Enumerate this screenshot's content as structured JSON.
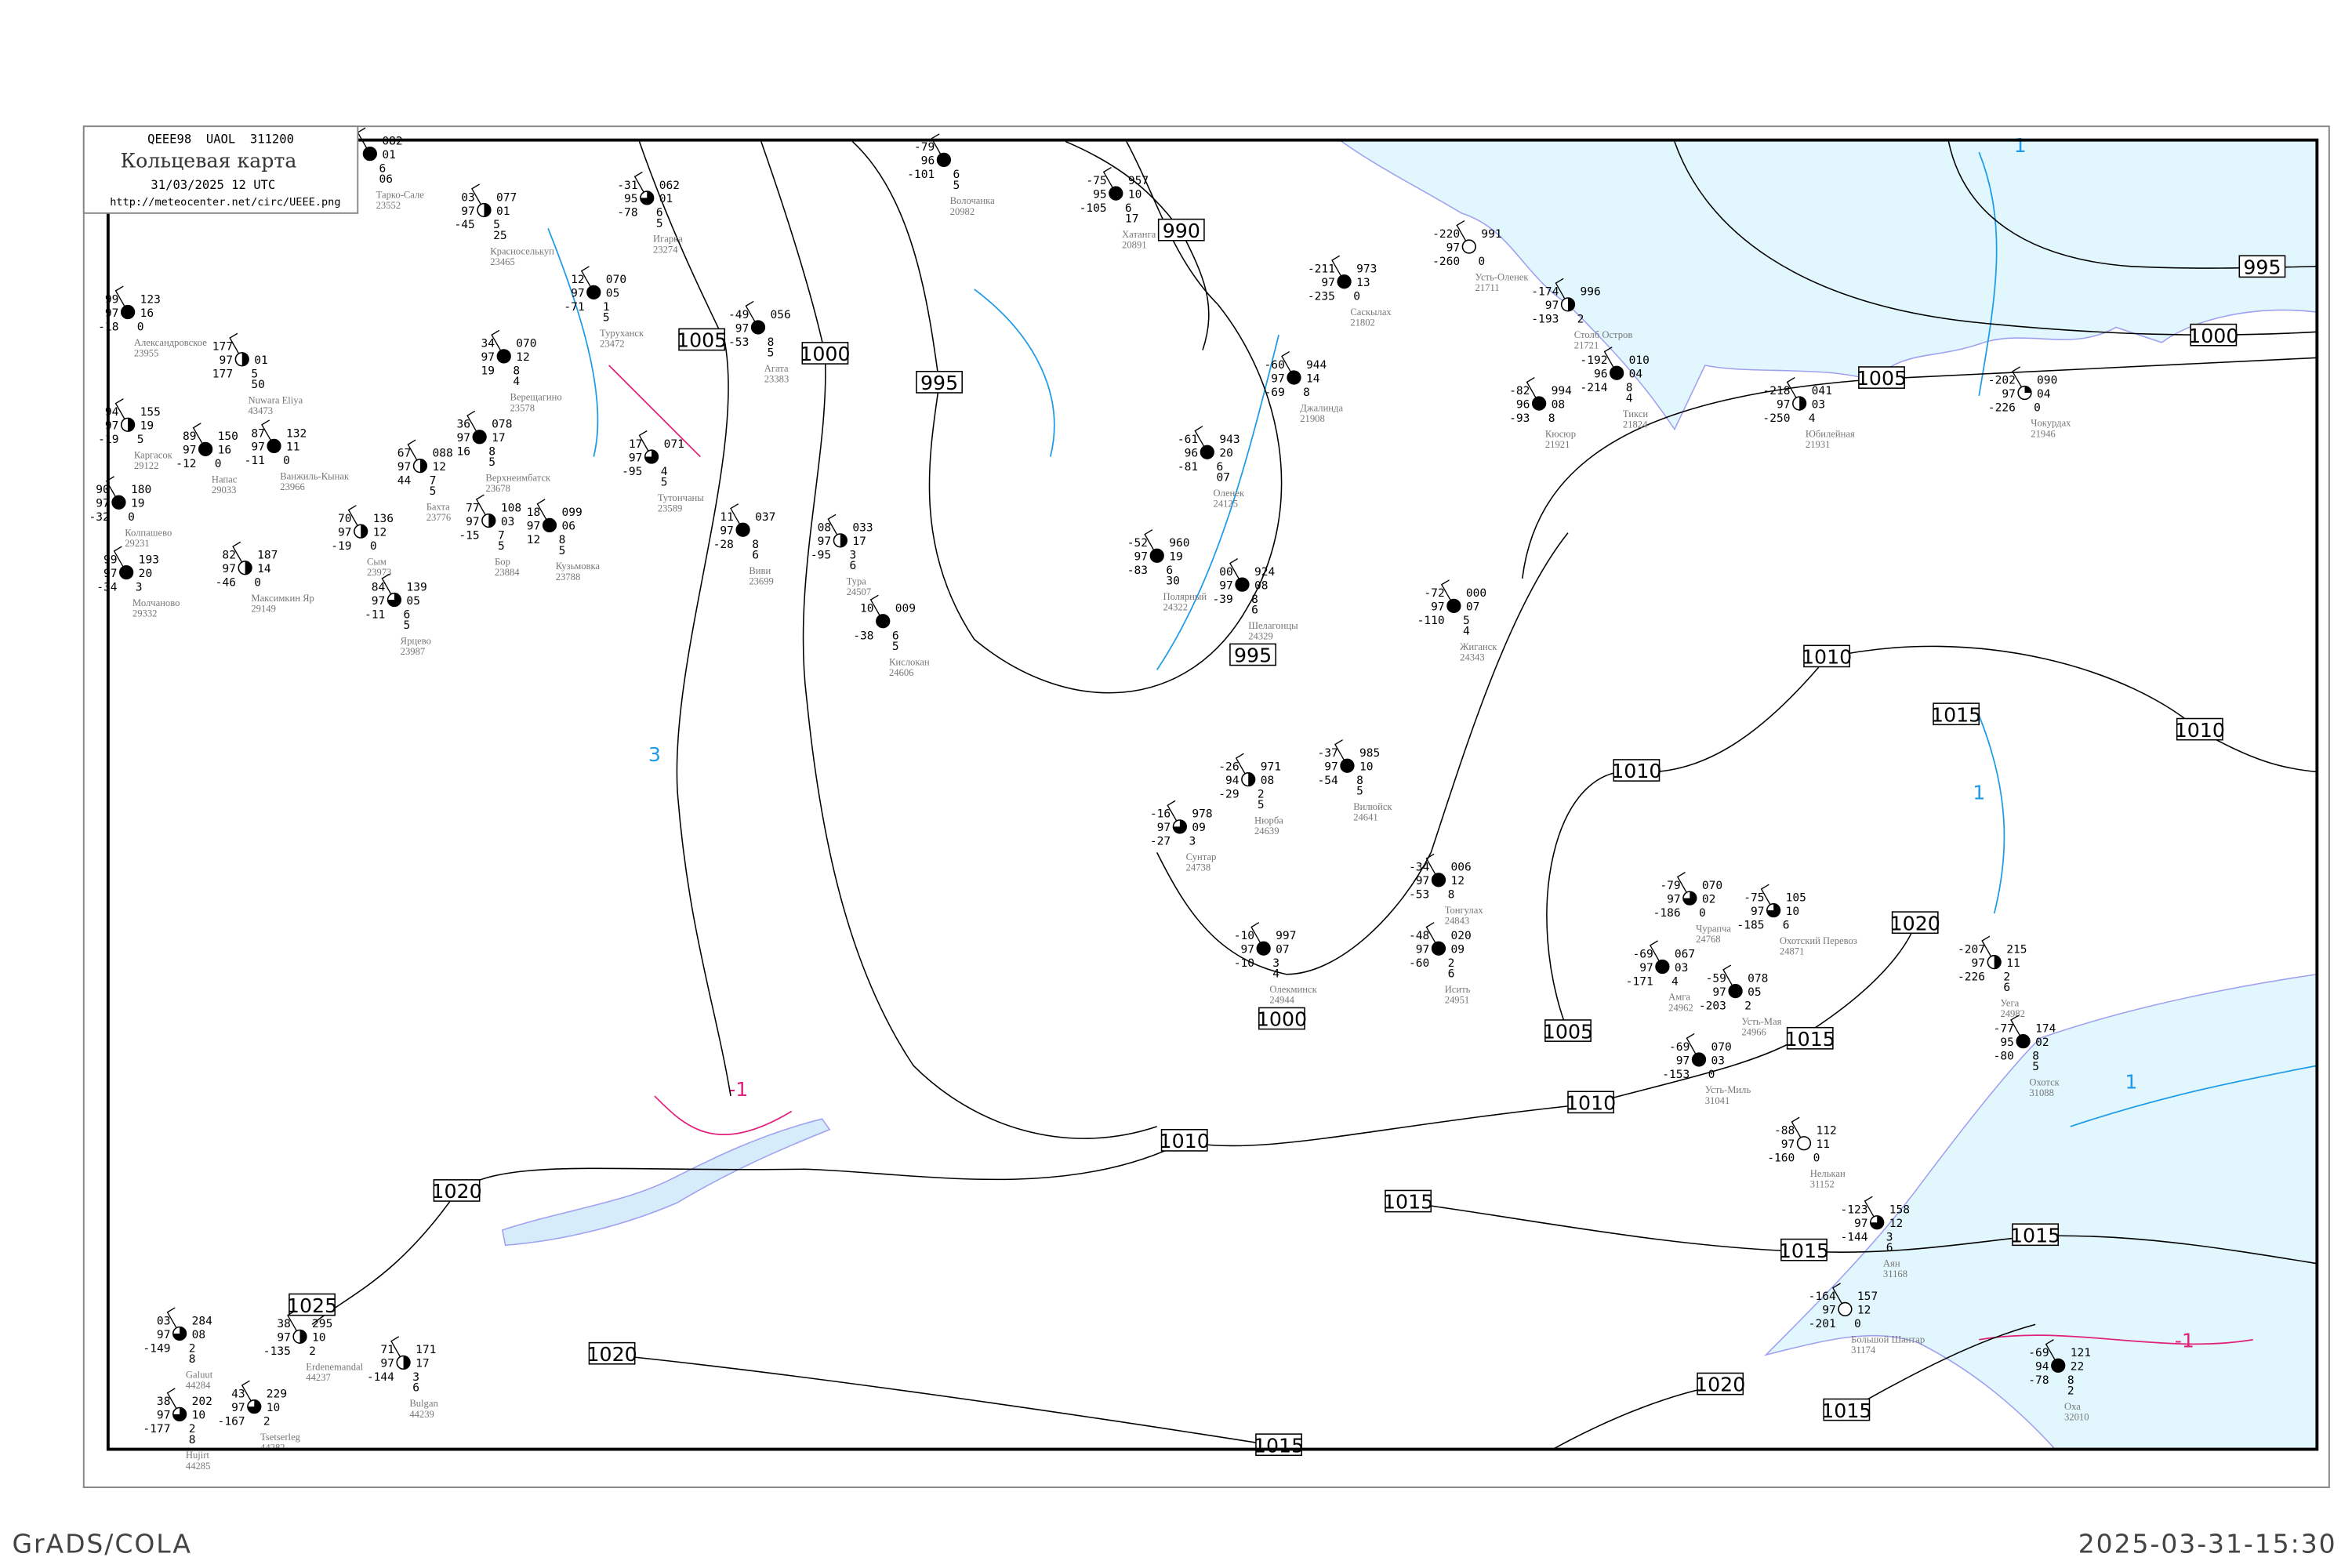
{
  "header": {
    "code_line": "QEEE98  UAOL  311200",
    "title": "Кольцевая карта",
    "datetime": "31/03/2025 12 UTC",
    "url": "http://meteocenter.net/circ/UEEE.png"
  },
  "footer": {
    "left": "GrADS/COLA",
    "right": "2025-03-31-15:30"
  },
  "colors": {
    "sea": "#e2f7fd",
    "coast": "#a0a0f0",
    "isobar": "#000000",
    "isotherm_neg": "#1e9be8",
    "isotherm_pos": "#e0207a",
    "station_name": "#777777",
    "marker_blue": "#3399ee",
    "marker_green": "#22cc33",
    "marker_yellow": "#ffff99"
  },
  "isobar_labels": [
    "1005",
    "1000",
    "995",
    "990",
    "995",
    "1000",
    "1005",
    "995",
    "1000",
    "1005",
    "1010",
    "1010",
    "1010",
    "1010",
    "1015",
    "1015",
    "1015",
    "1015",
    "1020",
    "1020",
    "1020",
    "1025",
    "1015",
    "1015",
    "1015",
    "1020",
    "1010"
  ],
  "isotherm_labels": [
    "1",
    "1",
    "3",
    "-1",
    "-1",
    "1"
  ],
  "stations": [
    {
      "name": "Тарко-Сале",
      "id": "23552",
      "temp": "",
      "vis": "",
      "dew": "",
      "pressure": "082",
      "tendency": "01",
      "extra": [
        "6",
        "06"
      ],
      "cover": "full"
    },
    {
      "name": "Александровское",
      "id": "23955",
      "temp": "99",
      "vis": "97",
      "dew": "-18",
      "pressure": "123",
      "tendency": "16",
      "extra": [
        "0"
      ],
      "cover": "full"
    },
    {
      "name": "Nuwara Eliya",
      "id": "43473",
      "temp": "177",
      "vis": "97",
      "dew": "177",
      "pressure": "",
      "tendency": "01",
      "extra": [
        "5",
        "50"
      ],
      "cover": "half"
    },
    {
      "name": "Каргасок",
      "id": "29122",
      "temp": "94",
      "vis": "97",
      "dew": "-19",
      "pressure": "155",
      "tendency": "19",
      "extra": [
        "5"
      ],
      "cover": "half"
    },
    {
      "name": "Напас",
      "id": "29033",
      "temp": "89",
      "vis": "97",
      "dew": "-12",
      "pressure": "150",
      "tendency": "16",
      "extra": [
        "0"
      ],
      "cover": "full"
    },
    {
      "name": "Ванжиль-Кынак",
      "id": "23966",
      "temp": "87",
      "vis": "97",
      "dew": "-11",
      "pressure": "132",
      "tendency": "11",
      "extra": [
        "0"
      ],
      "cover": "full"
    },
    {
      "name": "Колпашево",
      "id": "29231",
      "temp": "90",
      "vis": "97",
      "dew": "-32",
      "pressure": "180",
      "tendency": "19",
      "extra": [
        "0"
      ],
      "cover": "full"
    },
    {
      "name": "Молчаново",
      "id": "29332",
      "temp": "99",
      "vis": "97",
      "dew": "-34",
      "pressure": "193",
      "tendency": "20",
      "extra": [
        "3"
      ],
      "cover": "full"
    },
    {
      "name": "Максимкин Яр",
      "id": "29149",
      "temp": "82",
      "vis": "97",
      "dew": "-46",
      "pressure": "187",
      "tendency": "14",
      "extra": [
        "0"
      ],
      "cover": "half"
    },
    {
      "name": "Сым",
      "id": "23973",
      "temp": "70",
      "vis": "97",
      "dew": "-19",
      "pressure": "136",
      "tendency": "12",
      "extra": [
        "0"
      ],
      "cover": "half"
    },
    {
      "name": "Ярцево",
      "id": "23987",
      "temp": "84",
      "vis": "97",
      "dew": "-11",
      "pressure": "139",
      "tendency": "05",
      "extra": [
        "6",
        "5"
      ],
      "cover": "three-quarter"
    },
    {
      "name": "Красноселькуп",
      "id": "23465",
      "temp": "03",
      "vis": "97",
      "dew": "-45",
      "pressure": "077",
      "tendency": "01",
      "extra": [
        "5",
        "25"
      ],
      "cover": "half"
    },
    {
      "name": "Игарка",
      "id": "23274",
      "temp": "-31",
      "vis": "95",
      "dew": "-78",
      "pressure": "062",
      "tendency": "01",
      "extra": [
        "6",
        "5"
      ],
      "cover": "three-quarter"
    },
    {
      "name": "Туруханск",
      "id": "23472",
      "temp": "12",
      "vis": "97",
      "dew": "-71",
      "pressure": "070",
      "tendency": "05",
      "extra": [
        "1",
        "5"
      ],
      "cover": "full"
    },
    {
      "name": "Верещагино",
      "id": "23578",
      "temp": "34",
      "vis": "97",
      "dew": "19",
      "pressure": "070",
      "tendency": "12",
      "extra": [
        "8",
        "4"
      ],
      "cover": "full"
    },
    {
      "name": "Верхнеимбатск",
      "id": "23678",
      "temp": "36",
      "vis": "97",
      "dew": "16",
      "pressure": "078",
      "tendency": "17",
      "extra": [
        "8",
        "5"
      ],
      "cover": "full"
    },
    {
      "name": "Бахта",
      "id": "23776",
      "temp": "67",
      "vis": "97",
      "dew": "44",
      "pressure": "088",
      "tendency": "12",
      "extra": [
        "7",
        "5"
      ],
      "cover": "half"
    },
    {
      "name": "Бор",
      "id": "23884",
      "temp": "77",
      "vis": "97",
      "dew": "-15",
      "pressure": "108",
      "tendency": "03",
      "extra": [
        "7",
        "5"
      ],
      "cover": "half"
    },
    {
      "name": "Кузьмовка",
      "id": "23788",
      "temp": "18",
      "vis": "97",
      "dew": "12",
      "pressure": "099",
      "tendency": "06",
      "extra": [
        "8",
        "5"
      ],
      "cover": "full"
    },
    {
      "name": "Тутончаны",
      "id": "23589",
      "temp": "17",
      "vis": "97",
      "dew": "-95",
      "pressure": "071",
      "tendency": "",
      "extra": [
        "4",
        "5"
      ],
      "cover": "three-quarter"
    },
    {
      "name": "Волочанка",
      "id": "20982",
      "temp": "-79",
      "vis": "96",
      "dew": "-101",
      "pressure": "",
      "tendency": "",
      "extra": [
        "6",
        "5"
      ],
      "cover": "full"
    },
    {
      "name": "Хатанга",
      "id": "20891",
      "temp": "-75",
      "vis": "95",
      "dew": "-105",
      "pressure": "957",
      "tendency": "10",
      "extra": [
        "6",
        "17"
      ],
      "cover": "full"
    },
    {
      "name": "Агата",
      "id": "23383",
      "temp": "-49",
      "vis": "97",
      "dew": "-53",
      "pressure": "056",
      "tendency": "",
      "extra": [
        "8",
        "5"
      ],
      "cover": "full"
    },
    {
      "name": "Виви",
      "id": "23699",
      "temp": "11",
      "vis": "97",
      "dew": "-28",
      "pressure": "037",
      "tendency": "",
      "extra": [
        "8",
        "6"
      ],
      "cover": "full"
    },
    {
      "name": "Тура",
      "id": "24507",
      "temp": "08",
      "vis": "97",
      "dew": "-95",
      "pressure": "033",
      "tendency": "17",
      "extra": [
        "3",
        "6"
      ],
      "cover": "half"
    },
    {
      "name": "Кислокан",
      "id": "24606",
      "temp": "10",
      "vis": "",
      "dew": "-38",
      "pressure": "009",
      "tendency": "",
      "extra": [
        "6",
        "5"
      ],
      "cover": "full"
    },
    {
      "name": "Саскылах",
      "id": "21802",
      "temp": "-211",
      "vis": "97",
      "dew": "-235",
      "pressure": "973",
      "tendency": "13",
      "extra": [
        "0"
      ],
      "cover": "full"
    },
    {
      "name": "Усть-Оленек",
      "id": "21711",
      "temp": "-220",
      "vis": "97",
      "dew": "-260",
      "pressure": "991",
      "tendency": "",
      "extra": [
        "0"
      ],
      "cover": "empty"
    },
    {
      "name": "Джалинда",
      "id": "21908",
      "temp": "-60",
      "vis": "97",
      "dew": "-69",
      "pressure": "944",
      "tendency": "14",
      "extra": [
        "8"
      ],
      "cover": "full"
    },
    {
      "name": "Оленек",
      "id": "24125",
      "temp": "-61",
      "vis": "96",
      "dew": "-81",
      "pressure": "943",
      "tendency": "20",
      "extra": [
        "6",
        "07"
      ],
      "cover": "full"
    },
    {
      "name": "Полярный",
      "id": "24322",
      "temp": "-52",
      "vis": "97",
      "dew": "-83",
      "pressure": "960",
      "tendency": "19",
      "extra": [
        "6",
        "30"
      ],
      "cover": "full"
    },
    {
      "name": "Шелагонцы",
      "id": "24329",
      "temp": "00",
      "vis": "97",
      "dew": "-39",
      "pressure": "924",
      "tendency": "08",
      "extra": [
        "8",
        "6"
      ],
      "cover": "full"
    },
    {
      "name": "Жиганск",
      "id": "24343",
      "temp": "-72",
      "vis": "97",
      "dew": "-110",
      "pressure": "000",
      "tendency": "07",
      "extra": [
        "5",
        "4"
      ],
      "cover": "full"
    },
    {
      "name": "Столб Остров",
      "id": "21721",
      "temp": "-174",
      "vis": "97",
      "dew": "-193",
      "pressure": "996",
      "tendency": "",
      "extra": [
        "2"
      ],
      "cover": "half"
    },
    {
      "name": "Тикси",
      "id": "21824",
      "temp": "-192",
      "vis": "96",
      "dew": "-214",
      "pressure": "010",
      "tendency": "04",
      "extra": [
        "8",
        "4"
      ],
      "cover": "full"
    },
    {
      "name": "Кюсюр",
      "id": "21921",
      "temp": "-82",
      "vis": "96",
      "dew": "-93",
      "pressure": "994",
      "tendency": "08",
      "extra": [
        "8"
      ],
      "cover": "full"
    },
    {
      "name": "Юбилейная",
      "id": "21931",
      "temp": "-218",
      "vis": "97",
      "dew": "-250",
      "pressure": "041",
      "tendency": "03",
      "extra": [
        "4"
      ],
      "cover": "half"
    },
    {
      "name": "Чокурдах",
      "id": "21946",
      "temp": "-202",
      "vis": "97",
      "dew": "-226",
      "pressure": "090",
      "tendency": "04",
      "extra": [
        "0"
      ],
      "cover": "quarter"
    },
    {
      "name": "Нюрба",
      "id": "24639",
      "temp": "-26",
      "vis": "94",
      "dew": "-29",
      "pressure": "971",
      "tendency": "08",
      "extra": [
        "2",
        "5"
      ],
      "cover": "half"
    },
    {
      "name": "Вилюйск",
      "id": "24641",
      "temp": "-37",
      "vis": "97",
      "dew": "-54",
      "pressure": "985",
      "tendency": "10",
      "extra": [
        "8",
        "5"
      ],
      "cover": "full"
    },
    {
      "name": "Сунтар",
      "id": "24738",
      "temp": "-16",
      "vis": "97",
      "dew": "-27",
      "pressure": "978",
      "tendency": "09",
      "extra": [
        "3"
      ],
      "cover": "three-quarter"
    },
    {
      "name": "Тонгулах",
      "id": "24843",
      "temp": "-34",
      "vis": "97",
      "dew": "-53",
      "pressure": "006",
      "tendency": "12",
      "extra": [
        "8"
      ],
      "cover": "full"
    },
    {
      "name": "Олекминск",
      "id": "24944",
      "temp": "-10",
      "vis": "97",
      "dew": "-10",
      "pressure": "997",
      "tendency": "07",
      "extra": [
        "3",
        "4"
      ],
      "cover": "full"
    },
    {
      "name": "Исить",
      "id": "24951",
      "temp": "-48",
      "vis": "97",
      "dew": "-60",
      "pressure": "020",
      "tendency": "09",
      "extra": [
        "2",
        "6"
      ],
      "cover": "full"
    },
    {
      "name": "Чурапча",
      "id": "24768",
      "temp": "-79",
      "vis": "97",
      "dew": "-186",
      "pressure": "070",
      "tendency": "02",
      "extra": [
        "0"
      ],
      "cover": "three-quarter"
    },
    {
      "name": "Охотский Перевоз",
      "id": "24871",
      "temp": "-75",
      "vis": "97",
      "dew": "-185",
      "pressure": "105",
      "tendency": "10",
      "extra": [
        "6"
      ],
      "cover": "three-quarter"
    },
    {
      "name": "Амга",
      "id": "24962",
      "temp": "-69",
      "vis": "97",
      "dew": "-171",
      "pressure": "067",
      "tendency": "03",
      "extra": [
        "4"
      ],
      "cover": "full"
    },
    {
      "name": "Усть-Мая",
      "id": "24966",
      "temp": "-59",
      "vis": "97",
      "dew": "-203",
      "pressure": "078",
      "tendency": "05",
      "extra": [
        "2"
      ],
      "cover": "full"
    },
    {
      "name": "Усть-Миль",
      "id": "31041",
      "temp": "-69",
      "vis": "97",
      "dew": "-153",
      "pressure": "070",
      "tendency": "03",
      "extra": [
        "0"
      ],
      "cover": "full"
    },
    {
      "name": "Уега",
      "id": "24982",
      "temp": "-207",
      "vis": "97",
      "dew": "-226",
      "pressure": "215",
      "tendency": "11",
      "extra": [
        "2",
        "6"
      ],
      "cover": "half"
    },
    {
      "name": "Охотск",
      "id": "31088",
      "temp": "-77",
      "vis": "95",
      "dew": "-80",
      "pressure": "174",
      "tendency": "02",
      "extra": [
        "8",
        "5"
      ],
      "cover": "full"
    },
    {
      "name": "Нелькан",
      "id": "31152",
      "temp": "-88",
      "vis": "97",
      "dew": "-160",
      "pressure": "112",
      "tendency": "11",
      "extra": [
        "0"
      ],
      "cover": "empty"
    },
    {
      "name": "Аян",
      "id": "31168",
      "temp": "-123",
      "vis": "97",
      "dew": "-144",
      "pressure": "158",
      "tendency": "12",
      "extra": [
        "3",
        "6"
      ],
      "cover": "three-quarter"
    },
    {
      "name": "Большой Шантар",
      "id": "31174",
      "temp": "-164",
      "vis": "97",
      "dew": "-201",
      "pressure": "157",
      "tendency": "12",
      "extra": [
        "0"
      ],
      "cover": "empty"
    },
    {
      "name": "Оха",
      "id": "32010",
      "temp": "-69",
      "vis": "94",
      "dew": "-78",
      "pressure": "121",
      "tendency": "22",
      "extra": [
        "8",
        "2"
      ],
      "cover": "full"
    },
    {
      "name": "Erdenemandal",
      "id": "44237",
      "temp": "38",
      "vis": "97",
      "dew": "-135",
      "pressure": "295",
      "tendency": "10",
      "extra": [
        "2"
      ],
      "cover": "half"
    },
    {
      "name": "Bulgan",
      "id": "44239",
      "temp": "71",
      "vis": "97",
      "dew": "-144",
      "pressure": "171",
      "tendency": "17",
      "extra": [
        "3",
        "6"
      ],
      "cover": "half"
    },
    {
      "name": "Tsetserleg",
      "id": "44282",
      "temp": "43",
      "vis": "97",
      "dew": "-167",
      "pressure": "229",
      "tendency": "10",
      "extra": [
        "2"
      ],
      "cover": "three-quarter"
    },
    {
      "name": "Hujirt",
      "id": "44285",
      "temp": "38",
      "vis": "97",
      "dew": "-177",
      "pressure": "202",
      "tendency": "10",
      "extra": [
        "2",
        "8"
      ],
      "cover": "three-quarter"
    },
    {
      "name": "Galuut",
      "id": "44284",
      "temp": "03",
      "vis": "97",
      "dew": "-149",
      "pressure": "284",
      "tendency": "08",
      "extra": [
        "2",
        "8"
      ],
      "cover": "three-quarter"
    }
  ]
}
